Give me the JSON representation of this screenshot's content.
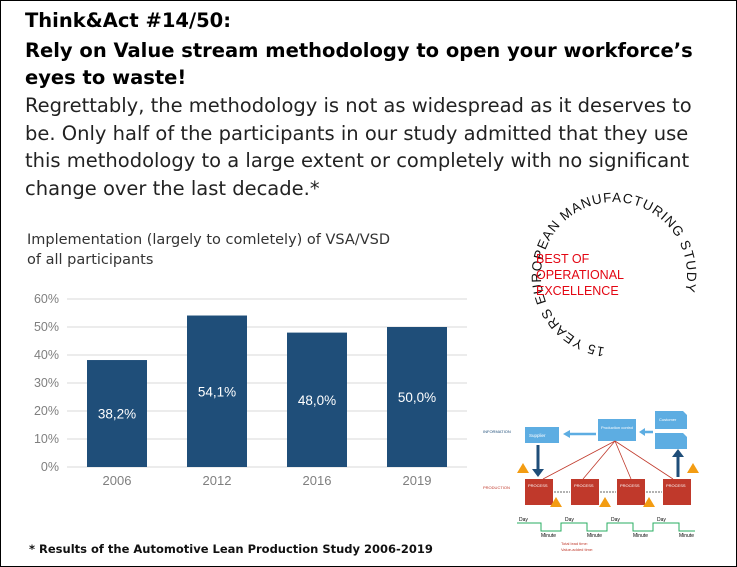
{
  "slide": {
    "title": "Think&Act #14/50:",
    "headline": "Rely on Value stream methodology to open your workforce’s eyes to waste!",
    "body": "Regrettably, the methodology is not as widespread as it deserves to be. Only half of the participants in our study admitted that they use this methodology to a large extent or completely with no significant change over the last decade.*",
    "footnote": "* Results of the Automotive Lean Production Study 2006-2019"
  },
  "seal": {
    "ring_text": "15 YEARS EUROPEAN MANUFACTURING STUDY",
    "line1": "BEST OF",
    "line2": "OPERATIONAL",
    "line3": "EXCELLENCE",
    "accent_color": "#e30613"
  },
  "chart_data": {
    "type": "bar",
    "title": "Implementation (largely to comletely) of VSA/VSD",
    "subtitle": "of all participants",
    "categories": [
      "2006",
      "2012",
      "2016",
      "2019"
    ],
    "values": [
      38.2,
      54.1,
      48.0,
      50.0
    ],
    "data_labels": [
      "38,2%",
      "54,1%",
      "48,0%",
      "50,0%"
    ],
    "ylim": [
      0,
      60
    ],
    "yticks": [
      0,
      10,
      20,
      30,
      40,
      50,
      60
    ],
    "ytick_labels": [
      "0%",
      "10%",
      "20%",
      "30%",
      "40%",
      "50%",
      "60%"
    ],
    "bar_color": "#1f4e79",
    "grid": true,
    "xlabel": "",
    "ylabel": ""
  },
  "vsm": {
    "information_label": "INFORMATION",
    "production_label": "PRODUCTION",
    "supplier_label": "Supplier",
    "control_label": "Production control",
    "customer_label": "Customer",
    "process_label": "PROCESS",
    "day_label": "Day",
    "minute_label": "Minute",
    "lead_time_label": "Total lead time:",
    "value_time_label": "Value-added time:",
    "process_color": "#c0392b",
    "box_color": "#5dade2"
  }
}
